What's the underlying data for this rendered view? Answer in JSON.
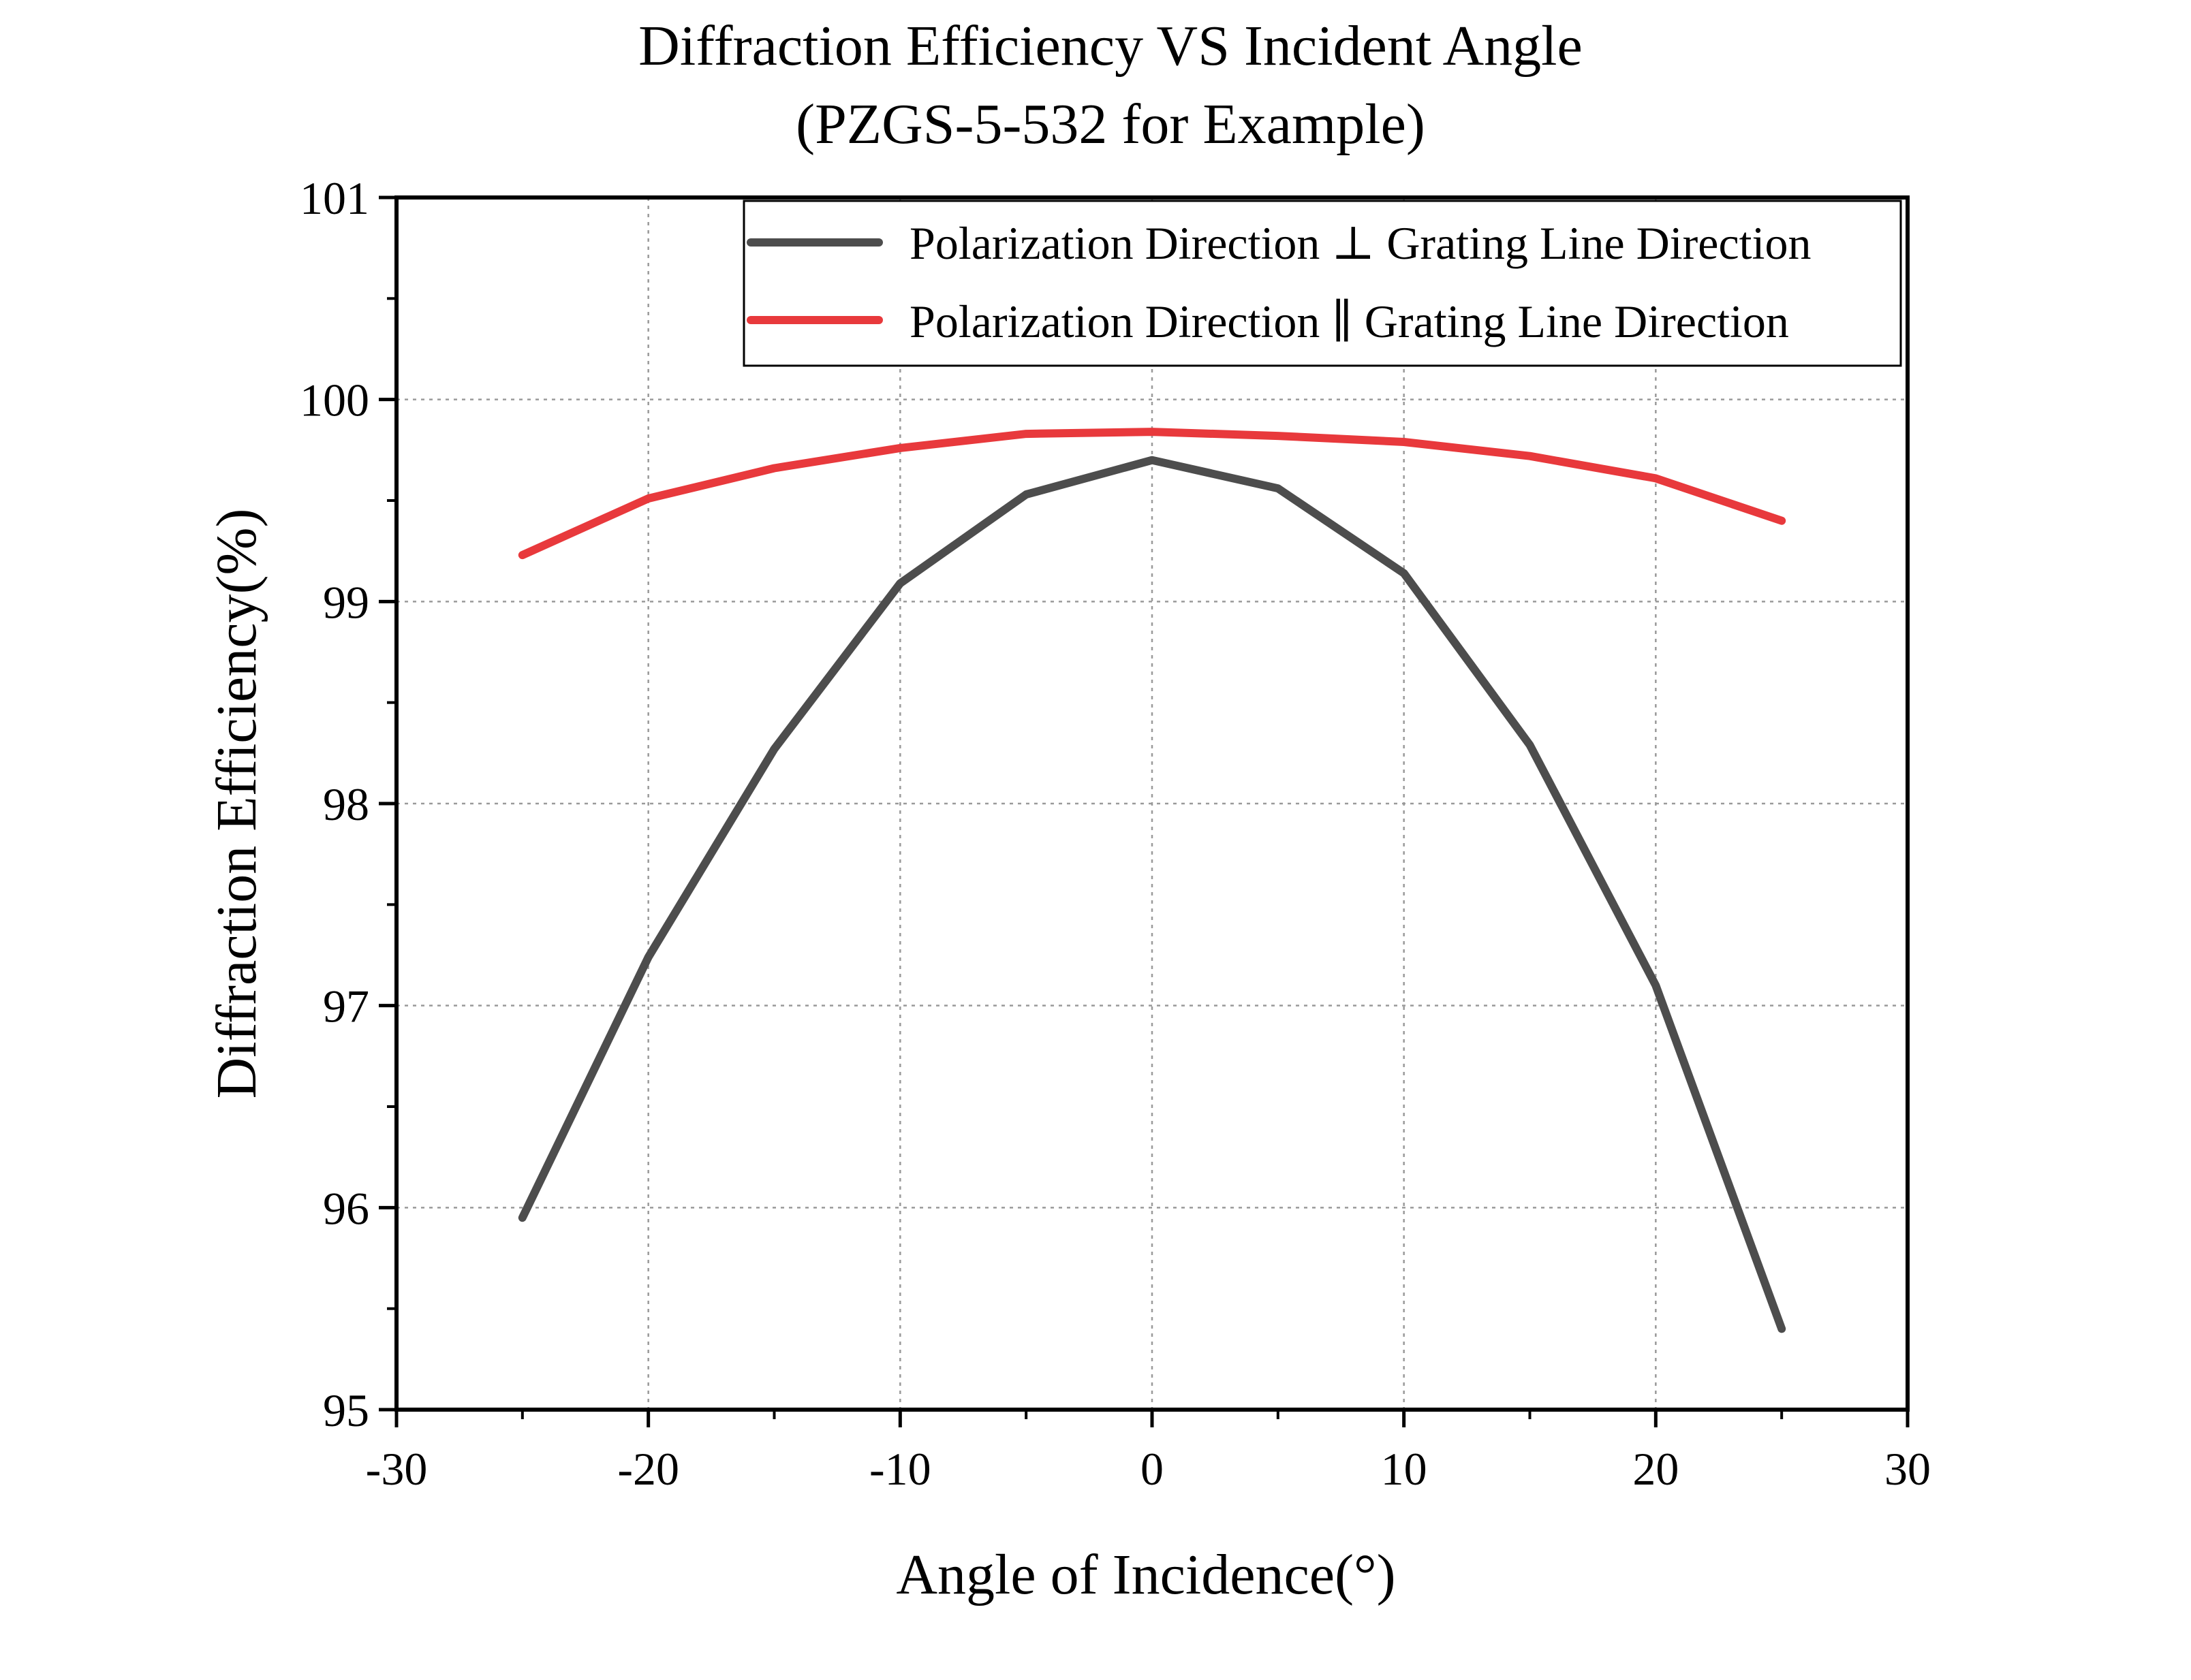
{
  "chart_data": {
    "type": "line",
    "title": "Diffraction Efficiency VS Incident Angle",
    "subtitle": "(PZGS-5-532 for Example)",
    "xlabel": "Angle of Incidence(°)",
    "ylabel": "Diffraction Efficiency(%)",
    "xlim": [
      -30,
      30
    ],
    "ylim": [
      95,
      101
    ],
    "xticks": [
      -30,
      -20,
      -10,
      0,
      10,
      20,
      30
    ],
    "yticks": [
      95,
      96,
      97,
      98,
      99,
      100,
      101
    ],
    "xtick_labels": [
      "-30",
      "-20",
      "-10",
      "0",
      "10",
      "20",
      "30"
    ],
    "ytick_labels": [
      "95",
      "96",
      "97",
      "98",
      "99",
      "100",
      "101"
    ],
    "grid": true,
    "legend_position": "top-right",
    "x": [
      -25,
      -20,
      -15,
      -10,
      -5,
      0,
      5,
      10,
      15,
      20,
      25
    ],
    "series": [
      {
        "name": "Polarization Direction ⊥ Grating Line Direction",
        "color": "#4d4d4d",
        "values": [
          95.95,
          97.24,
          98.27,
          99.09,
          99.53,
          99.7,
          99.56,
          99.14,
          98.29,
          97.1,
          95.4
        ]
      },
      {
        "name": "Polarization Direction ∥ Grating Line Direction",
        "color": "#e8393c",
        "values": [
          99.23,
          99.51,
          99.66,
          99.76,
          99.83,
          99.84,
          99.82,
          99.79,
          99.72,
          99.61,
          99.4
        ]
      }
    ]
  }
}
